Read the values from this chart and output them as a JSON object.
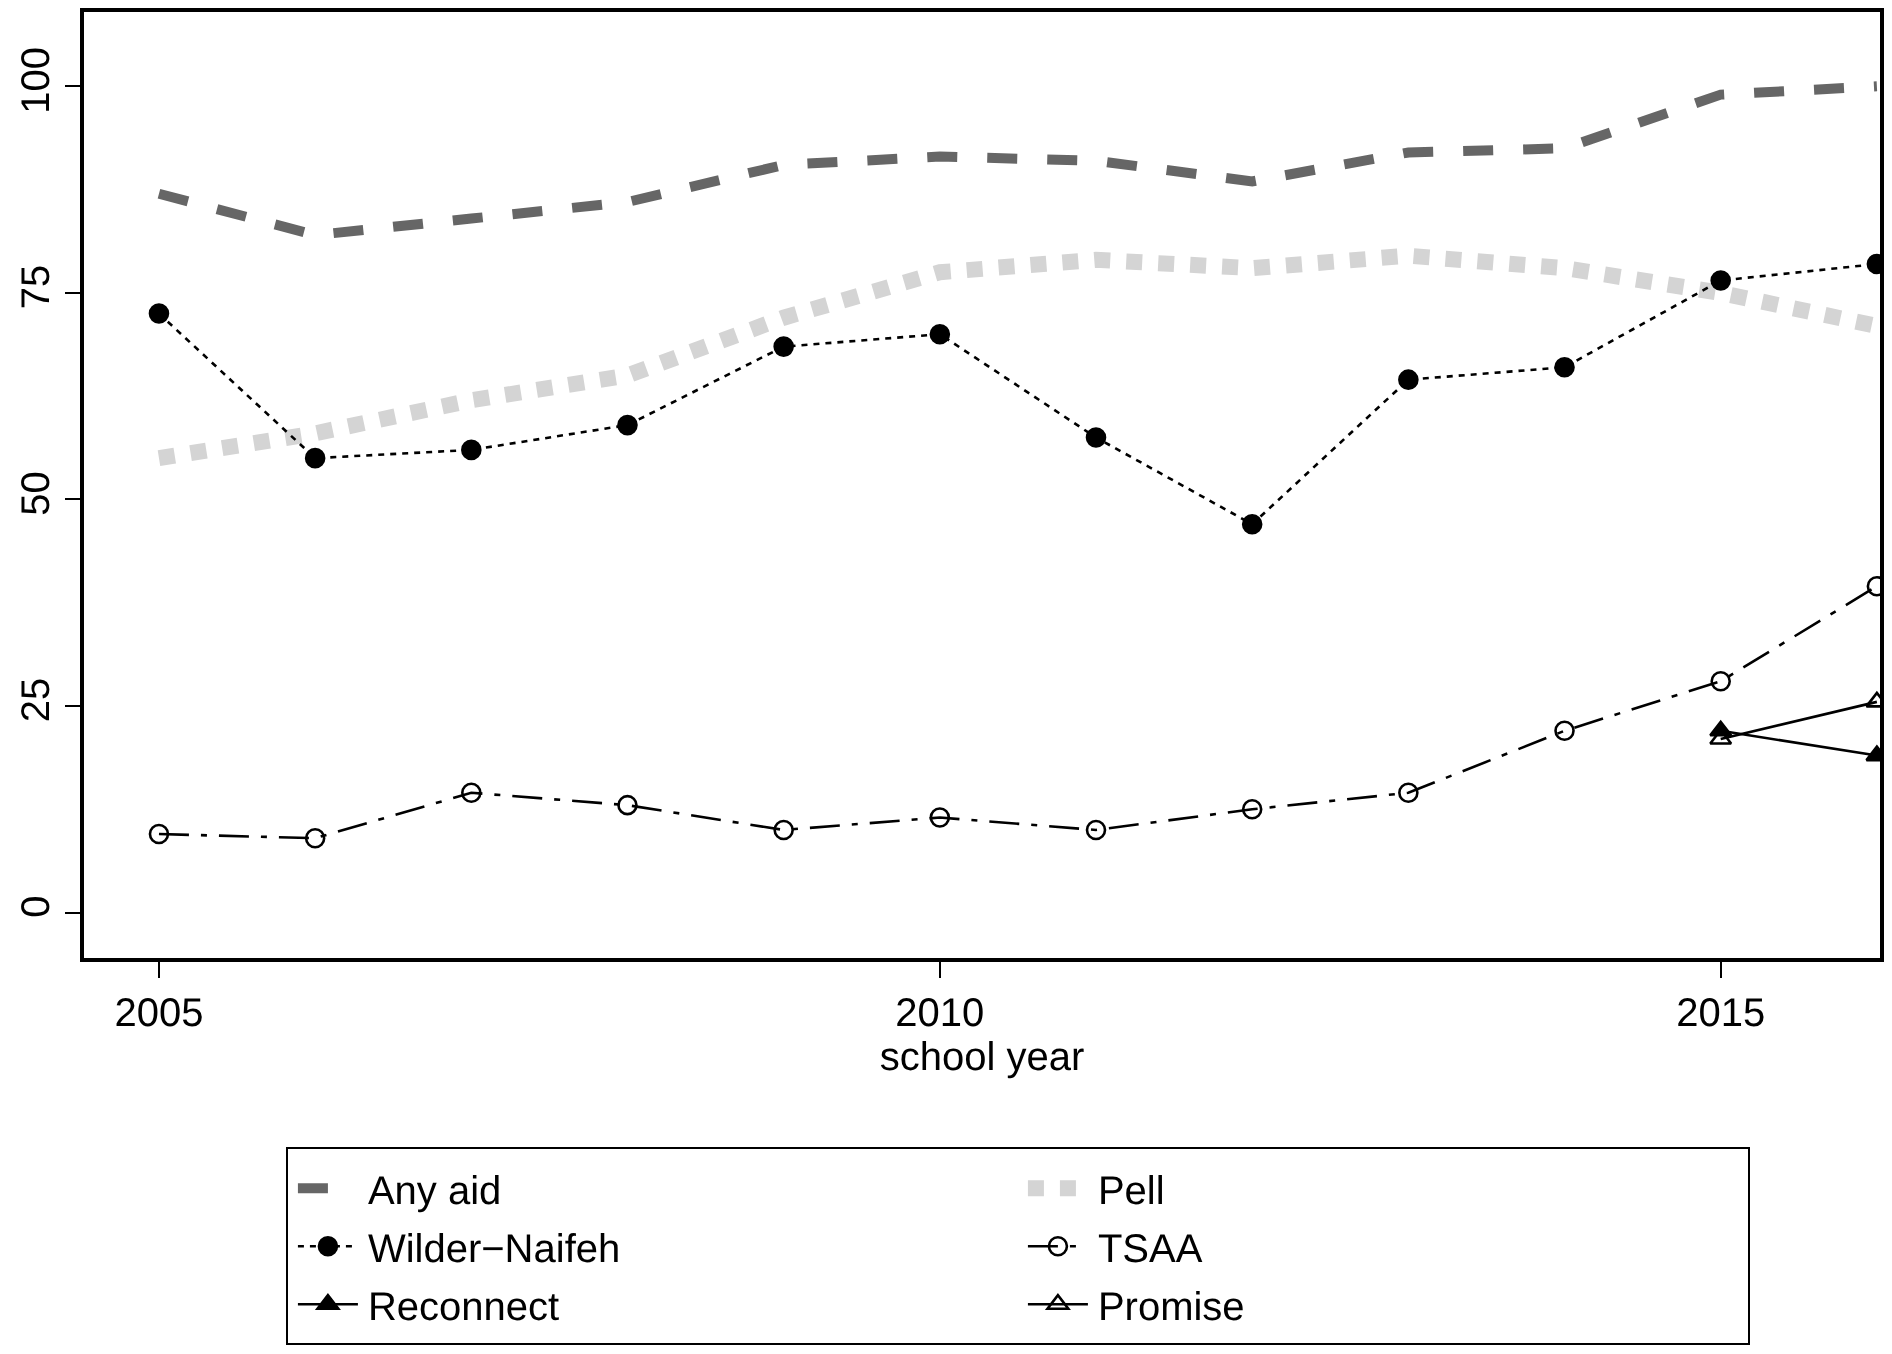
{
  "chart_data": {
    "type": "line",
    "xlabel": "school year",
    "x": [
      2005,
      2006,
      2007,
      2008,
      2009,
      2010,
      2011,
      2012,
      2013,
      2014,
      2015,
      2016
    ],
    "series": [
      {
        "name": "Any aid",
        "color": "#666666",
        "line_style": "dashed",
        "marker": "none",
        "values": [
          87,
          82,
          84,
          86,
          90.5,
          91.5,
          91,
          88.5,
          92,
          92.5,
          99,
          100
        ]
      },
      {
        "name": "Pell",
        "color": "#d4d4d4",
        "line_style": "dotted",
        "marker": "none",
        "values": [
          55,
          58,
          62,
          65,
          72,
          77.5,
          79,
          78,
          79.5,
          78,
          75,
          71
        ]
      },
      {
        "name": "Wilder−Naifeh",
        "color": "#000000",
        "line_style": "dotted",
        "marker": "circle",
        "values": [
          72.5,
          55,
          56,
          59,
          68.5,
          70,
          57.5,
          47,
          64.5,
          66,
          76.5,
          78.5
        ]
      },
      {
        "name": "TSAA",
        "color": "#000000",
        "line_style": "dashdot",
        "marker": "circle-open",
        "values": [
          9.5,
          9,
          14.5,
          13,
          10,
          11.5,
          10,
          12.5,
          14.5,
          22,
          28,
          39.5
        ]
      },
      {
        "name": "Reconnect",
        "color": "#000000",
        "line_style": "solid",
        "marker": "triangle",
        "values": [
          null,
          null,
          null,
          null,
          null,
          null,
          null,
          null,
          null,
          null,
          22,
          19
        ]
      },
      {
        "name": "Promise",
        "color": "#000000",
        "line_style": "solid",
        "marker": "triangle-open",
        "values": [
          null,
          null,
          null,
          null,
          null,
          null,
          null,
          null,
          null,
          null,
          21,
          25.5
        ]
      }
    ],
    "xlim": [
      2004.52,
      2016.02
    ],
    "xticks": [
      2005,
      2010,
      2015
    ],
    "ylim": [
      -5.5,
      109
    ],
    "yticks": [
      0,
      25,
      50,
      75,
      100
    ],
    "legend": "bottom"
  }
}
